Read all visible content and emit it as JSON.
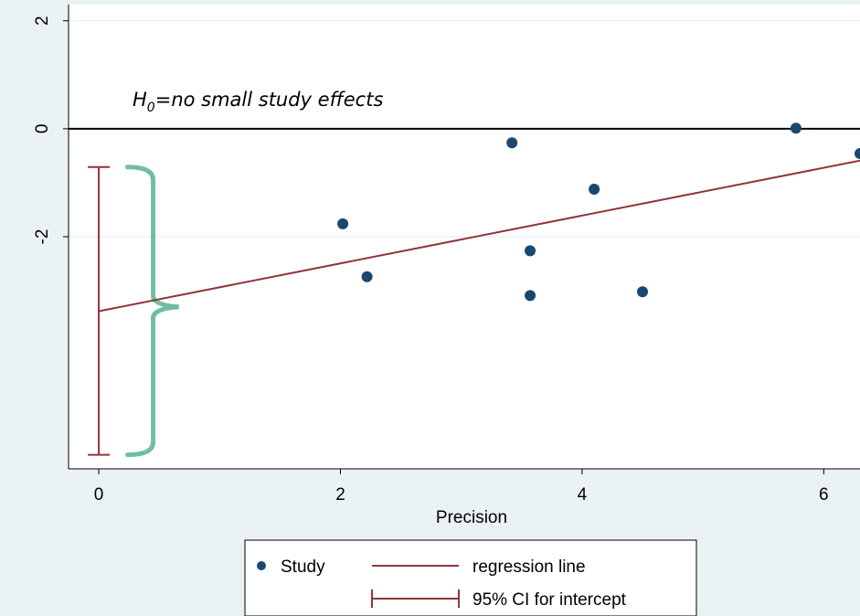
{
  "chart_data": {
    "type": "scatter",
    "xlabel": "Precision",
    "ylabel": "",
    "xlim": [
      -0.25,
      6.3
    ],
    "ylim": [
      -6.3,
      2.3
    ],
    "x_ticks": [
      0,
      2,
      4,
      6
    ],
    "y_ticks": [
      2,
      0,
      -2
    ],
    "x_tick_labels": [
      "0",
      "2",
      "4",
      "6"
    ],
    "y_tick_labels": [
      "2",
      "0",
      "-2"
    ],
    "grid": "horizontal",
    "series": [
      {
        "name": "Study",
        "kind": "scatter",
        "color": "#1a476f",
        "points": [
          {
            "x": 2.02,
            "y": -1.76
          },
          {
            "x": 2.22,
            "y": -2.74
          },
          {
            "x": 3.42,
            "y": -0.26
          },
          {
            "x": 3.57,
            "y": -2.26
          },
          {
            "x": 3.57,
            "y": -3.09
          },
          {
            "x": 4.1,
            "y": -1.12
          },
          {
            "x": 4.5,
            "y": -3.02
          },
          {
            "x": 5.77,
            "y": 0.01
          },
          {
            "x": 6.3,
            "y": -0.46
          }
        ]
      },
      {
        "name": "regression line",
        "kind": "line",
        "color": "#90353b",
        "x": [
          0,
          6.3
        ],
        "y": [
          -3.38,
          -0.59
        ]
      },
      {
        "name": "95% CI for intercept",
        "kind": "errorbar",
        "color": "#90353b",
        "x": 0,
        "low": -6.04,
        "high": -0.71
      }
    ],
    "reference_line": {
      "y": 0,
      "color": "#000000"
    },
    "annotation": {
      "base": "H",
      "subscript": "0",
      "rest": "=no small study effects",
      "x": 0.4,
      "y": 0.45
    },
    "brace": {
      "x": 0.45,
      "low": -6.04,
      "high": -0.71,
      "tip_y": -3.3,
      "color": "#6fbf9f"
    },
    "legend": {
      "placement": "bottom-center",
      "items": [
        {
          "label": "Study",
          "symbol": "dot"
        },
        {
          "label": "regression line",
          "symbol": "line"
        },
        {
          "label": "95% CI for intercept",
          "symbol": "errorbar"
        }
      ]
    }
  }
}
